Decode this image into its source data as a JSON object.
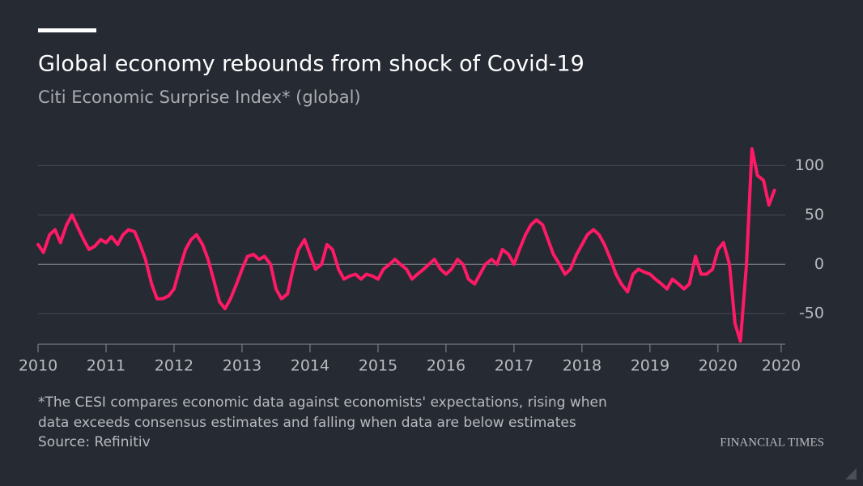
{
  "chart_data": {
    "type": "line",
    "title": "Global economy rebounds from shock of Covid-19",
    "subtitle": "Citi Economic Surprise Index* (global)",
    "note": [
      "*The CESI compares economic data against economists' expectations, rising when",
      "data exceeds consensus estimates and falling when data are below estimates"
    ],
    "source": "Source: Refinitiv",
    "brand": "FINANCIAL TIMES",
    "grid": true,
    "xlim": [
      2010,
      2020.99
    ],
    "xticks": [
      2010,
      2011,
      2012,
      2013,
      2014,
      2015,
      2016,
      2017,
      2018,
      2019,
      2020,
      {
        "value": 2020.93,
        "label": "2020"
      }
    ],
    "ylim": [
      -81,
      120
    ],
    "yticks": [
      -50,
      0,
      50,
      100
    ],
    "x": [
      2010,
      2010.08,
      2010.17,
      2010.25,
      2010.33,
      2010.42,
      2010.5,
      2010.58,
      2010.67,
      2010.75,
      2010.83,
      2010.92,
      2011,
      2011.08,
      2011.17,
      2011.25,
      2011.33,
      2011.42,
      2011.5,
      2011.58,
      2011.67,
      2011.75,
      2011.83,
      2011.92,
      2012,
      2012.08,
      2012.17,
      2012.25,
      2012.33,
      2012.42,
      2012.5,
      2012.58,
      2012.67,
      2012.75,
      2012.83,
      2012.92,
      2013,
      2013.08,
      2013.17,
      2013.25,
      2013.33,
      2013.42,
      2013.5,
      2013.58,
      2013.67,
      2013.75,
      2013.83,
      2013.92,
      2014,
      2014.08,
      2014.17,
      2014.25,
      2014.33,
      2014.42,
      2014.5,
      2014.58,
      2014.67,
      2014.75,
      2014.83,
      2014.92,
      2015,
      2015.08,
      2015.17,
      2015.25,
      2015.33,
      2015.42,
      2015.5,
      2015.58,
      2015.67,
      2015.75,
      2015.83,
      2015.92,
      2016,
      2016.08,
      2016.17,
      2016.25,
      2016.33,
      2016.42,
      2016.5,
      2016.58,
      2016.67,
      2016.75,
      2016.83,
      2016.92,
      2017,
      2017.08,
      2017.17,
      2017.25,
      2017.33,
      2017.42,
      2017.5,
      2017.58,
      2017.67,
      2017.75,
      2017.83,
      2017.92,
      2018,
      2018.08,
      2018.17,
      2018.25,
      2018.33,
      2018.42,
      2018.5,
      2018.58,
      2018.67,
      2018.75,
      2018.83,
      2018.92,
      2019,
      2019.08,
      2019.17,
      2019.25,
      2019.33,
      2019.42,
      2019.5,
      2019.58,
      2019.67,
      2019.75,
      2019.83,
      2019.92,
      2020,
      2020.08,
      2020.17,
      2020.25,
      2020.33,
      2020.42,
      2020.5,
      2020.58,
      2020.67,
      2020.75,
      2020.83
    ],
    "series": [
      {
        "color": "#ff1a66",
        "values": [
          20,
          12,
          30,
          35,
          22,
          40,
          50,
          38,
          25,
          15,
          18,
          25,
          22,
          28,
          20,
          30,
          35,
          33,
          20,
          5,
          -20,
          -35,
          -35,
          -32,
          -25,
          -5,
          15,
          25,
          30,
          20,
          5,
          -15,
          -38,
          -45,
          -35,
          -20,
          -5,
          8,
          10,
          5,
          8,
          0,
          -25,
          -35,
          -30,
          -5,
          15,
          25,
          10,
          -5,
          0,
          20,
          15,
          -5,
          -15,
          -12,
          -10,
          -15,
          -10,
          -12,
          -15,
          -5,
          0,
          5,
          0,
          -5,
          -15,
          -10,
          -5,
          0,
          5,
          -5,
          -10,
          -5,
          5,
          0,
          -15,
          -20,
          -10,
          0,
          5,
          0,
          15,
          10,
          0,
          15,
          30,
          40,
          45,
          40,
          25,
          10,
          0,
          -10,
          -5,
          10,
          20,
          30,
          35,
          30,
          20,
          5,
          -10,
          -20,
          -28,
          -10,
          -5,
          -8,
          -10,
          -15,
          -20,
          -25,
          -15,
          -20,
          -25,
          -20,
          8,
          -10,
          -10,
          -5,
          15,
          22,
          0,
          -60,
          -78,
          0,
          117,
          90,
          85,
          60,
          75
        ]
      }
    ]
  }
}
